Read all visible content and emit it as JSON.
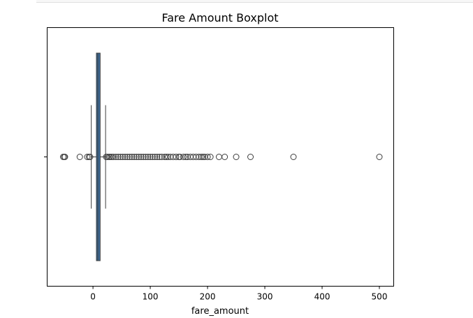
{
  "chart_data": {
    "type": "boxplot",
    "orientation": "horizontal",
    "title": "Fare Amount Boxplot",
    "xlabel": "fare_amount",
    "ylabel": "",
    "xlim": [
      -80,
      525
    ],
    "xticks": [
      0,
      100,
      200,
      300,
      400,
      500
    ],
    "xtick_labels": [
      "0",
      "100",
      "200",
      "300",
      "400",
      "500"
    ],
    "box": {
      "whisker_low": -3,
      "q1": 6,
      "median": 8.5,
      "q3": 12.5,
      "whisker_high": 22
    },
    "outliers": [
      -52,
      -50,
      -49,
      -23,
      -10,
      -7,
      -5,
      23,
      25,
      28,
      30,
      33,
      36,
      40,
      44,
      48,
      52,
      56,
      60,
      64,
      68,
      72,
      76,
      80,
      84,
      88,
      92,
      96,
      100,
      104,
      108,
      112,
      116,
      120,
      125,
      128,
      131,
      135,
      140,
      145,
      150,
      152,
      158,
      162,
      165,
      170,
      175,
      180,
      185,
      189,
      192,
      195,
      200,
      205,
      220,
      230,
      250,
      275,
      350,
      500
    ],
    "grid": false,
    "colors": {
      "box": "#3b6fa0",
      "edge": "#3d3d3d"
    }
  }
}
